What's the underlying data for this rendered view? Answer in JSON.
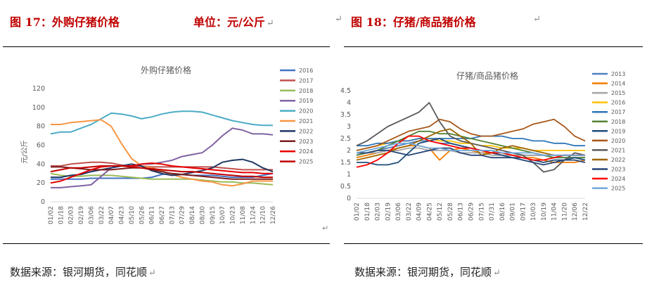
{
  "left": {
    "figure_label": "图 17：外购仔猪价格",
    "unit_label": "单位：元/公斤",
    "source": "数据来源：银河期货，同花顺"
  },
  "right": {
    "figure_label": "图 18：仔猪/商品猪价格",
    "source": "数据来源：银河期货，同花顺"
  },
  "return_mark": "↵",
  "chart_data": [
    {
      "type": "line",
      "title": "外购仔猪价格",
      "xlabel": "",
      "ylabel": "元/公斤",
      "ylim": [
        0,
        120
      ],
      "yticks": [
        "0",
        "20",
        "40",
        "60",
        "80",
        "100",
        "120"
      ],
      "xticks": [
        "01/02",
        "01/18",
        "02/03",
        "02/19",
        "03/06",
        "03/22",
        "04/07",
        "04/23",
        "05/10",
        "05/26",
        "06/11",
        "06/27",
        "07/13",
        "07/29",
        "08/14",
        "08/30",
        "09/15",
        "10/07",
        "10/23",
        "11/08",
        "11/24",
        "12/10",
        "12/26"
      ],
      "series": [
        {
          "name": "2016",
          "color": "#4472c4",
          "values": [
            24,
            24,
            24,
            24,
            25,
            25,
            25,
            25,
            25,
            25,
            26,
            29,
            30,
            29,
            28,
            28,
            28,
            27,
            26,
            26,
            26,
            28,
            30
          ]
        },
        {
          "name": "2017",
          "color": "#c0504d",
          "values": [
            38,
            38,
            40,
            41,
            42,
            42,
            41,
            39,
            38,
            38,
            37,
            37,
            37,
            37,
            37,
            37,
            37,
            36,
            35,
            34,
            34,
            34,
            34
          ]
        },
        {
          "name": "2018",
          "color": "#9bbb59",
          "values": [
            30,
            28,
            27,
            27,
            28,
            28,
            28,
            27,
            26,
            25,
            24,
            24,
            24,
            24,
            24,
            23,
            22,
            21,
            21,
            20,
            20,
            19,
            18
          ]
        },
        {
          "name": "2019",
          "color": "#8064a2",
          "values": [
            15,
            15,
            16,
            17,
            18,
            27,
            36,
            38,
            38,
            40,
            40,
            42,
            44,
            48,
            50,
            52,
            60,
            70,
            78,
            76,
            72,
            72,
            71
          ]
        },
        {
          "name": "2020",
          "color": "#4bacc6",
          "values": [
            72,
            74,
            74,
            78,
            82,
            88,
            94,
            93,
            91,
            88,
            90,
            93,
            95,
            96,
            96,
            95,
            92,
            89,
            86,
            84,
            82,
            81,
            81
          ]
        },
        {
          "name": "2021",
          "color": "#f79646",
          "values": [
            82,
            82,
            84,
            85,
            86,
            87,
            80,
            62,
            46,
            38,
            36,
            33,
            29,
            26,
            24,
            22,
            21,
            18,
            17,
            19,
            22,
            22,
            22
          ]
        },
        {
          "name": "2022",
          "color": "#1f3864",
          "values": [
            26,
            26,
            28,
            29,
            32,
            34,
            36,
            38,
            40,
            38,
            33,
            30,
            28,
            29,
            31,
            33,
            36,
            42,
            44,
            45,
            42,
            36,
            32
          ]
        },
        {
          "name": "2023",
          "color": "#7b1d1d",
          "values": [
            37,
            37,
            36,
            35,
            34,
            34,
            34,
            35,
            36,
            36,
            34,
            32,
            30,
            29,
            28,
            27,
            26,
            25,
            24,
            24,
            24,
            24,
            24
          ]
        },
        {
          "name": "2024",
          "color": "#e60000",
          "values": [
            20,
            22,
            26,
            30,
            34,
            37,
            38,
            38,
            38,
            40,
            41,
            40,
            38,
            37,
            36,
            35,
            34,
            33,
            32,
            31,
            31,
            30,
            30
          ]
        },
        {
          "name": "2025",
          "color": "#c00000",
          "values": [
            32,
            34,
            36,
            36,
            37,
            38,
            38,
            38,
            37,
            36,
            35,
            34,
            33,
            32,
            32,
            31,
            30,
            29,
            28,
            27,
            27,
            26,
            26
          ]
        }
      ]
    },
    {
      "type": "line",
      "title": "仔猪/商品猪价格",
      "xlabel": "",
      "ylabel": "",
      "ylim": [
        0,
        4.5
      ],
      "yticks": [
        "0",
        "0.5",
        "1",
        "1.5",
        "2",
        "2.5",
        "3",
        "3.5",
        "4",
        "4.5"
      ],
      "xticks": [
        "01/02",
        "01/18",
        "02/03",
        "02/19",
        "03/06",
        "03/22",
        "04/09",
        "04/25",
        "05/12",
        "05/28",
        "06/13",
        "06/29",
        "07/15",
        "07/31",
        "08/16",
        "09/01",
        "09/17",
        "10/03",
        "10/19",
        "11/04",
        "11/20",
        "12/06",
        "12/22"
      ],
      "series": [
        {
          "name": "2013",
          "color": "#4e81bd",
          "values": [
            1.8,
            1.9,
            2.0,
            2.1,
            2.2,
            2.3,
            2.4,
            2.4,
            2.3,
            2.3,
            2.2,
            2.1,
            2.0,
            2.0,
            1.9,
            1.9,
            1.8,
            1.8,
            1.8,
            1.7,
            1.7,
            1.7,
            1.7
          ]
        },
        {
          "name": "2014",
          "color": "#f57c00",
          "values": [
            1.7,
            1.8,
            1.9,
            2.0,
            2.1,
            2.2,
            2.2,
            2.1,
            1.6,
            2.0,
            2.1,
            2.0,
            1.9,
            1.9,
            1.8,
            1.8,
            1.7,
            1.7,
            1.6,
            1.5,
            1.5,
            1.5,
            1.6
          ]
        },
        {
          "name": "2015",
          "color": "#a5a5a5",
          "values": [
            1.9,
            1.9,
            1.9,
            2.0,
            2.0,
            2.1,
            2.1,
            2.0,
            2.0,
            2.0,
            1.9,
            1.9,
            1.9,
            1.8,
            1.8,
            1.8,
            1.8,
            1.8,
            1.8,
            1.8,
            1.8,
            1.8,
            1.8
          ]
        },
        {
          "name": "2016",
          "color": "#ffc000",
          "values": [
            2.0,
            2.1,
            2.2,
            2.3,
            2.4,
            2.4,
            2.5,
            2.5,
            2.4,
            2.4,
            2.3,
            2.3,
            2.2,
            2.2,
            2.1,
            2.1,
            2.1,
            2.0,
            2.0,
            2.0,
            2.0,
            2.0,
            2.0
          ]
        },
        {
          "name": "2017",
          "color": "#2e75b6",
          "values": [
            2.2,
            2.2,
            2.3,
            2.3,
            2.4,
            2.4,
            2.5,
            2.5,
            2.5,
            2.5,
            2.5,
            2.5,
            2.6,
            2.6,
            2.6,
            2.5,
            2.5,
            2.4,
            2.4,
            2.3,
            2.3,
            2.2,
            2.2
          ]
        },
        {
          "name": "2018",
          "color": "#548235",
          "values": [
            1.8,
            1.9,
            2.0,
            2.2,
            2.4,
            2.6,
            2.8,
            2.8,
            2.7,
            2.7,
            2.6,
            2.5,
            2.4,
            2.3,
            2.2,
            2.1,
            2.0,
            1.9,
            1.8,
            1.7,
            1.7,
            1.7,
            1.7
          ]
        },
        {
          "name": "2019",
          "color": "#1f4e79",
          "values": [
            1.5,
            1.5,
            1.4,
            1.4,
            1.5,
            1.9,
            2.3,
            2.4,
            2.5,
            2.3,
            2.2,
            2.1,
            2.0,
            1.9,
            1.8,
            1.7,
            1.7,
            1.6,
            1.5,
            1.6,
            1.6,
            1.7,
            1.6
          ]
        },
        {
          "name": "2020",
          "color": "#a8571a",
          "values": [
            2.0,
            2.1,
            2.2,
            2.4,
            2.6,
            2.8,
            2.9,
            3.0,
            3.3,
            3.2,
            2.9,
            2.7,
            2.6,
            2.6,
            2.7,
            2.8,
            2.9,
            3.1,
            3.2,
            3.3,
            3.0,
            2.6,
            2.4
          ]
        },
        {
          "name": "2021",
          "color": "#595959",
          "values": [
            2.2,
            2.4,
            2.7,
            3.0,
            3.2,
            3.4,
            3.6,
            4.0,
            3.2,
            2.6,
            2.4,
            2.3,
            2.2,
            2.1,
            2.0,
            1.9,
            1.8,
            1.5,
            1.1,
            1.2,
            1.6,
            1.9,
            1.8
          ]
        },
        {
          "name": "2022",
          "color": "#9c6500",
          "values": [
            1.6,
            1.7,
            1.8,
            1.9,
            2.1,
            2.2,
            2.4,
            2.6,
            2.8,
            2.9,
            2.6,
            2.3,
            1.8,
            1.9,
            2.1,
            2.2,
            2.1,
            2.0,
            1.9,
            1.8,
            1.8,
            1.8,
            1.8
          ]
        },
        {
          "name": "2023",
          "color": "#264478",
          "values": [
            1.9,
            1.9,
            2.0,
            2.0,
            1.9,
            1.8,
            1.9,
            2.0,
            2.1,
            2.1,
            1.9,
            1.8,
            1.8,
            1.7,
            1.7,
            1.7,
            1.6,
            1.5,
            1.4,
            1.5,
            1.6,
            1.6,
            1.5
          ]
        },
        {
          "name": "2024",
          "color": "#ff0000",
          "values": [
            1.3,
            1.4,
            1.6,
            1.9,
            2.3,
            2.6,
            2.6,
            2.4,
            2.3,
            2.2,
            2.1,
            2.1,
            2.0,
            1.9,
            1.9,
            1.8,
            1.7,
            1.6,
            1.6,
            1.7,
            1.8,
            1.8,
            1.8
          ]
        },
        {
          "name": "2025",
          "color": "#6fa8dc",
          "values": [
            1.9,
            2.0,
            2.1,
            2.2,
            2.3,
            2.3,
            2.2,
            2.1,
            2.1,
            2.0,
            2.0,
            2.0,
            2.0,
            2.0,
            1.9,
            1.9,
            1.9,
            1.9,
            1.8,
            1.8,
            1.8,
            1.8,
            1.8
          ]
        }
      ]
    }
  ]
}
